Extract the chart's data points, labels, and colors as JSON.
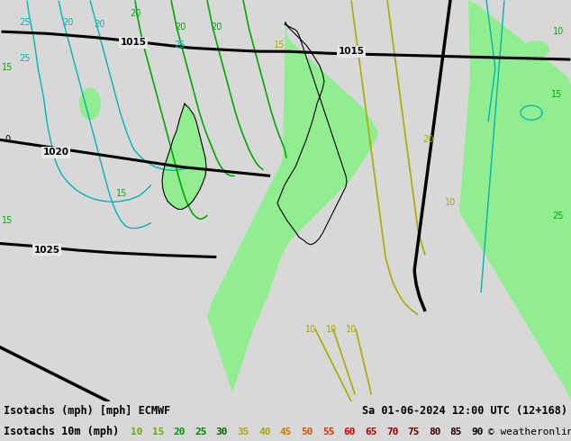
{
  "title_left": "Isotachs (mph) [mph] ECMWF",
  "title_right": "Sa 01-06-2024 12:00 UTC (12+168)",
  "legend_label": "Isotachs 10m (mph)",
  "copyright": "© weatheronline.co.uk",
  "speed_values": [
    10,
    15,
    20,
    25,
    30,
    35,
    40,
    45,
    50,
    55,
    60,
    65,
    70,
    75,
    80,
    85,
    90
  ],
  "legend_colors": [
    "#c8f078",
    "#64c832",
    "#00aa00",
    "#009600",
    "#007800",
    "#ffff00",
    "#e6dc00",
    "#ffaa00",
    "#ff6400",
    "#ff3200",
    "#ff0000",
    "#cc0000",
    "#aa0000",
    "#880000",
    "#660000",
    "#440000",
    "#220000"
  ],
  "legend_text_colors": [
    "#64aa00",
    "#64aa00",
    "#009600",
    "#008200",
    "#006400",
    "#aaaa00",
    "#aaaa00",
    "#cc7700",
    "#cc5500",
    "#cc3300",
    "#cc0000",
    "#aa0000",
    "#880000",
    "#660000",
    "#440000",
    "#220000",
    "#110000"
  ],
  "bg_color": "#d8d8d8",
  "map_bg_color": "#e8e8e8",
  "bottom_bar_color": "#b4b4b4",
  "text_color": "#000000",
  "fig_width": 6.34,
  "fig_height": 4.9,
  "dpi": 100,
  "isobar_color": "#000000",
  "cyan_color": "#00b4b4",
  "green_color": "#00aa00",
  "yellow_color": "#aaaa00",
  "orange_color": "#ff8c00",
  "black_color": "#000000",
  "green_fill": "#90ee90"
}
